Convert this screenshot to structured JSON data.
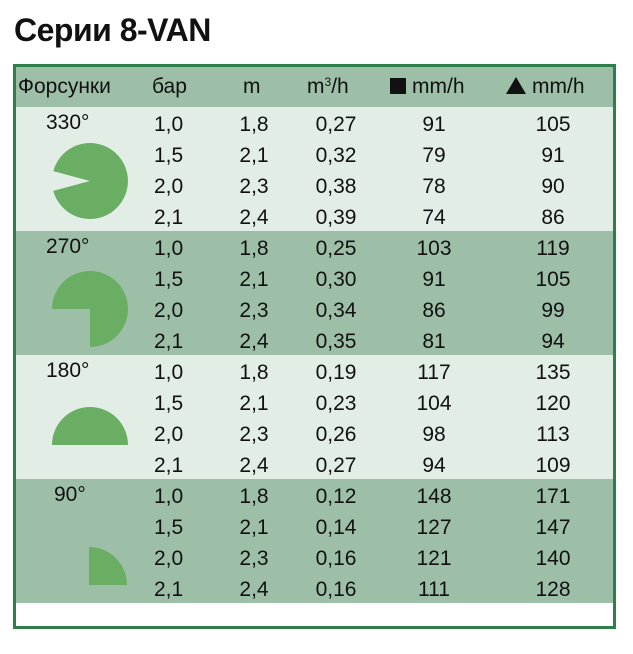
{
  "title": "Серии 8-VAN",
  "headers": {
    "nozzle": "Форсунки",
    "bar": "бар",
    "m": "m",
    "flow_base": "m",
    "flow_sup": "3",
    "flow_unit": "/h",
    "square": "mm/h",
    "triangle": "mm/h"
  },
  "colors": {
    "border": "#2f7f4a",
    "header_bg": "#9dbfa8",
    "light_band": "#e1ede5",
    "dark_band": "#9dbfa8",
    "icon_fill": "#69ae62"
  },
  "groups": [
    {
      "angle": "330°",
      "icon": "circle-330-icon",
      "rows": [
        {
          "bar": "1,0",
          "m": "1,8",
          "flow": "0,27",
          "square": "91",
          "triangle": "105"
        },
        {
          "bar": "1,5",
          "m": "2,1",
          "flow": "0,32",
          "square": "79",
          "triangle": "91"
        },
        {
          "bar": "2,0",
          "m": "2,3",
          "flow": "0,38",
          "square": "78",
          "triangle": "90"
        },
        {
          "bar": "2,1",
          "m": "2,4",
          "flow": "0,39",
          "square": "74",
          "triangle": "86"
        }
      ]
    },
    {
      "angle": "270°",
      "icon": "circle-270-icon",
      "rows": [
        {
          "bar": "1,0",
          "m": "1,8",
          "flow": "0,25",
          "square": "103",
          "triangle": "119"
        },
        {
          "bar": "1,5",
          "m": "2,1",
          "flow": "0,30",
          "square": "91",
          "triangle": "105"
        },
        {
          "bar": "2,0",
          "m": "2,3",
          "flow": "0,34",
          "square": "86",
          "triangle": "99"
        },
        {
          "bar": "2,1",
          "m": "2,4",
          "flow": "0,35",
          "square": "81",
          "triangle": "94"
        }
      ]
    },
    {
      "angle": "180°",
      "icon": "circle-180-icon",
      "rows": [
        {
          "bar": "1,0",
          "m": "1,8",
          "flow": "0,19",
          "square": "117",
          "triangle": "135"
        },
        {
          "bar": "1,5",
          "m": "2,1",
          "flow": "0,23",
          "square": "104",
          "triangle": "120"
        },
        {
          "bar": "2,0",
          "m": "2,3",
          "flow": "0,26",
          "square": "98",
          "triangle": "113"
        },
        {
          "bar": "2,1",
          "m": "2,4",
          "flow": "0,27",
          "square": "94",
          "triangle": "109"
        }
      ]
    },
    {
      "angle": "90°",
      "icon": "circle-90-icon",
      "rows": [
        {
          "bar": "1,0",
          "m": "1,8",
          "flow": "0,12",
          "square": "148",
          "triangle": "171"
        },
        {
          "bar": "1,5",
          "m": "2,1",
          "flow": "0,14",
          "square": "127",
          "triangle": "147"
        },
        {
          "bar": "2,0",
          "m": "2,3",
          "flow": "0,16",
          "square": "121",
          "triangle": "140"
        },
        {
          "bar": "2,1",
          "m": "2,4",
          "flow": "0,16",
          "square": "111",
          "triangle": "128"
        }
      ]
    }
  ]
}
